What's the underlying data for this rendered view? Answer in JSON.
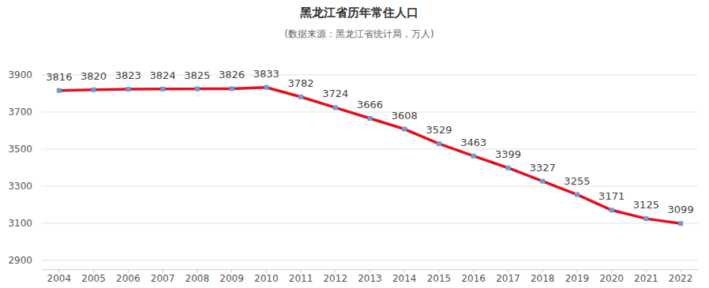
{
  "chart_data": {
    "type": "line",
    "title": "黑龙江省历年常住人口",
    "subtitle": "(数据来源：黑龙江省统计局，万人)",
    "categories": [
      "2004",
      "2005",
      "2006",
      "2007",
      "2008",
      "2009",
      "2010",
      "2011",
      "2012",
      "2013",
      "2014",
      "2015",
      "2016",
      "2017",
      "2018",
      "2019",
      "2020",
      "2021",
      "2022"
    ],
    "values": [
      3816,
      3820,
      3823,
      3824,
      3825,
      3826,
      3833,
      3782,
      3724,
      3666,
      3608,
      3529,
      3463,
      3399,
      3327,
      3255,
      3171,
      3125,
      3099
    ],
    "color": "#e3101c",
    "marker": "square",
    "ylim": [
      2850,
      3950
    ],
    "yticks": [
      2900,
      3100,
      3300,
      3500,
      3700,
      3900
    ],
    "grid": true,
    "data_labels": true
  }
}
